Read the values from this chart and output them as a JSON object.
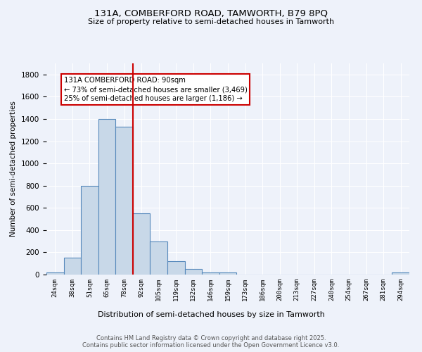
{
  "title1": "131A, COMBERFORD ROAD, TAMWORTH, B79 8PQ",
  "title2": "Size of property relative to semi-detached houses in Tamworth",
  "xlabel": "Distribution of semi-detached houses by size in Tamworth",
  "ylabel": "Number of semi-detached properties",
  "bin_labels": [
    "24sqm",
    "38sqm",
    "51sqm",
    "65sqm",
    "78sqm",
    "92sqm",
    "105sqm",
    "119sqm",
    "132sqm",
    "146sqm",
    "159sqm",
    "173sqm",
    "186sqm",
    "200sqm",
    "213sqm",
    "227sqm",
    "240sqm",
    "254sqm",
    "267sqm",
    "281sqm",
    "294sqm"
  ],
  "bin_values": [
    20,
    150,
    800,
    1400,
    1330,
    550,
    300,
    120,
    50,
    20,
    20,
    0,
    0,
    0,
    0,
    0,
    0,
    0,
    0,
    0,
    20
  ],
  "bar_color": "#c8d8e8",
  "bar_edge_color": "#5588bb",
  "marker_index": 5,
  "marker_label": "131A COMBERFORD ROAD: 90sqm",
  "marker_color": "#cc0000",
  "annotation_line1": "← 73% of semi-detached houses are smaller (3,469)",
  "annotation_line2": "25% of semi-detached houses are larger (1,186) →",
  "annotation_box_color": "#ffffff",
  "annotation_box_edge": "#cc0000",
  "footer_text": "Contains HM Land Registry data © Crown copyright and database right 2025.\nContains public sector information licensed under the Open Government Licence v3.0.",
  "ylim": [
    0,
    1900
  ],
  "background_color": "#eef2fa",
  "grid_color": "#ffffff",
  "yticks": [
    0,
    200,
    400,
    600,
    800,
    1000,
    1200,
    1400,
    1600,
    1800
  ]
}
